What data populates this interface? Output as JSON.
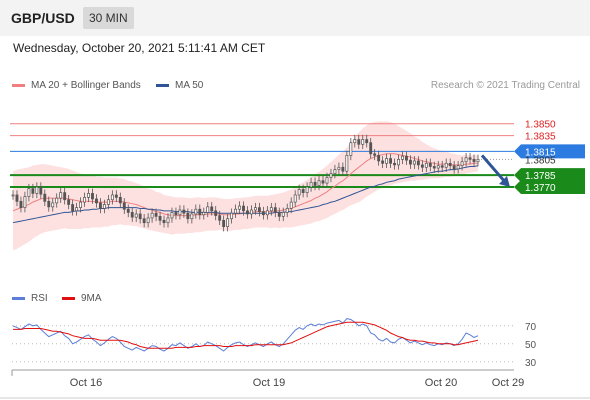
{
  "header": {
    "pair": "GBP/USD",
    "timeframe": "30 MIN",
    "datetime": "Wednesday, October 20, 2021 5:11:41 AM CET"
  },
  "legend": {
    "main": [
      {
        "label": "MA 20 + Bollinger Bands",
        "color": "#f08080"
      },
      {
        "label": "MA 50",
        "color": "#2f5597"
      }
    ],
    "rsi": [
      {
        "label": "RSI",
        "color": "#5b7fd6"
      },
      {
        "label": "9MA",
        "color": "#e01010"
      }
    ]
  },
  "credit": "Research © 2021 Trading Central",
  "colors": {
    "resistance": "#f08080",
    "current": "#2b7be0",
    "support": "#1a8a1a",
    "candle_up": "#444444",
    "candle_down": "#888888",
    "band_fill": "#fde0e0",
    "arrow": "#2f5597"
  },
  "chart_data": [
    {
      "type": "candlestick",
      "x_labels": [
        "Oct 16",
        "Oct 19",
        "Oct 20",
        "Oct 29"
      ],
      "ylim": [
        1.364,
        1.3885
      ],
      "levels": [
        {
          "value": 1.385,
          "label": "1.3850",
          "kind": "resistance"
        },
        {
          "value": 1.3835,
          "label": "1.3835",
          "kind": "resistance"
        },
        {
          "value": 1.3815,
          "label": "1.3815",
          "kind": "current"
        },
        {
          "value": 1.3805,
          "label": "1.3805",
          "kind": "price"
        },
        {
          "value": 1.3785,
          "label": "1.3785",
          "kind": "support"
        },
        {
          "value": 1.377,
          "label": "1.3770",
          "kind": "support"
        }
      ],
      "candles_close": [
        1.376,
        1.3752,
        1.3744,
        1.3758,
        1.3768,
        1.3762,
        1.377,
        1.3761,
        1.3752,
        1.3745,
        1.375,
        1.3756,
        1.3763,
        1.3754,
        1.3748,
        1.374,
        1.3744,
        1.3751,
        1.3757,
        1.3762,
        1.3755,
        1.375,
        1.3743,
        1.3748,
        1.3754,
        1.376,
        1.3757,
        1.375,
        1.3742,
        1.3738,
        1.3732,
        1.3736,
        1.373,
        1.3725,
        1.3731,
        1.3737,
        1.3733,
        1.3728,
        1.3725,
        1.3731,
        1.3738,
        1.3735,
        1.3741,
        1.3737,
        1.373,
        1.3736,
        1.3742,
        1.3735,
        1.3738,
        1.3745,
        1.374,
        1.3734,
        1.3728,
        1.372,
        1.373,
        1.3737,
        1.3742,
        1.3746,
        1.374,
        1.3736,
        1.3741,
        1.3744,
        1.3739,
        1.3735,
        1.374,
        1.3744,
        1.3738,
        1.3733,
        1.3738,
        1.3743,
        1.3751,
        1.376,
        1.3767,
        1.3763,
        1.377,
        1.3776,
        1.3772,
        1.3778,
        1.3775,
        1.3782,
        1.3787,
        1.3792,
        1.3795,
        1.379,
        1.381,
        1.3826,
        1.383,
        1.3824,
        1.383,
        1.3826,
        1.3812,
        1.381,
        1.3803,
        1.38,
        1.3806,
        1.38,
        1.3798,
        1.3805,
        1.3809,
        1.3804,
        1.3799,
        1.3803,
        1.3798,
        1.3795,
        1.38,
        1.3796,
        1.3794,
        1.3797,
        1.3795,
        1.38,
        1.3797,
        1.3793,
        1.3797,
        1.3802,
        1.3807,
        1.3805,
        1.3802,
        1.3805
      ],
      "ma20": [
        1.374,
        1.3742,
        1.3744,
        1.3746,
        1.3748,
        1.3751,
        1.3753,
        1.3755,
        1.3756,
        1.3756,
        1.3756,
        1.3756,
        1.3756,
        1.3756,
        1.3755,
        1.3754,
        1.3753,
        1.3752,
        1.3752,
        1.3752,
        1.3752,
        1.3751,
        1.3751,
        1.3751,
        1.3751,
        1.3752,
        1.3752,
        1.3752,
        1.3751,
        1.375,
        1.3749,
        1.3748,
        1.3746,
        1.3744,
        1.3742,
        1.3741,
        1.3739,
        1.3738,
        1.3736,
        1.3735,
        1.3734,
        1.3734,
        1.3734,
        1.3734,
        1.3734,
        1.3734,
        1.3735,
        1.3735,
        1.3735,
        1.3736,
        1.3736,
        1.3736,
        1.3736,
        1.3735,
        1.3735,
        1.3735,
        1.3736,
        1.3736,
        1.3737,
        1.3737,
        1.3738,
        1.3739,
        1.3739,
        1.3739,
        1.3739,
        1.3739,
        1.374,
        1.374,
        1.3741,
        1.3742,
        1.3743,
        1.3745,
        1.3747,
        1.3749,
        1.3751,
        1.3753,
        1.3756,
        1.3758,
        1.3761,
        1.3764,
        1.3768,
        1.3771,
        1.3775,
        1.3778,
        1.3782,
        1.3787,
        1.3791,
        1.3795,
        1.3799,
        1.3803,
        1.3806,
        1.3808,
        1.381,
        1.3811,
        1.3812,
        1.3812,
        1.3812,
        1.3811,
        1.381,
        1.3809,
        1.3808,
        1.3806,
        1.3805,
        1.3803,
        1.3802,
        1.3801,
        1.38,
        1.3799,
        1.3799,
        1.3799,
        1.3798,
        1.3798,
        1.3798,
        1.3798,
        1.3799,
        1.3799,
        1.38,
        1.38
      ],
      "ma50": [
        1.3725,
        1.3726,
        1.3727,
        1.3728,
        1.3729,
        1.373,
        1.3731,
        1.3732,
        1.3733,
        1.3734,
        1.3735,
        1.3736,
        1.3737,
        1.3738,
        1.3738,
        1.3739,
        1.374,
        1.374,
        1.3741,
        1.3741,
        1.3742,
        1.3742,
        1.3743,
        1.3743,
        1.3744,
        1.3744,
        1.3744,
        1.3744,
        1.3744,
        1.3744,
        1.3744,
        1.3744,
        1.3743,
        1.3743,
        1.3742,
        1.3742,
        1.3741,
        1.3741,
        1.374,
        1.374,
        1.374,
        1.3739,
        1.3739,
        1.3739,
        1.3739,
        1.3738,
        1.3738,
        1.3738,
        1.3738,
        1.3738,
        1.3738,
        1.3738,
        1.3737,
        1.3737,
        1.3737,
        1.3737,
        1.3737,
        1.3737,
        1.3737,
        1.3737,
        1.3737,
        1.3737,
        1.3737,
        1.3737,
        1.3737,
        1.3737,
        1.3738,
        1.3738,
        1.3738,
        1.3739,
        1.3739,
        1.374,
        1.3741,
        1.3742,
        1.3743,
        1.3744,
        1.3745,
        1.3746,
        1.3748,
        1.3749,
        1.3751,
        1.3752,
        1.3754,
        1.3756,
        1.3758,
        1.376,
        1.3762,
        1.3764,
        1.3766,
        1.3768,
        1.377,
        1.3771,
        1.3773,
        1.3774,
        1.3776,
        1.3777,
        1.3778,
        1.378,
        1.3781,
        1.3782,
        1.3783,
        1.3784,
        1.3785,
        1.3786,
        1.3787,
        1.3788,
        1.3789,
        1.379,
        1.379,
        1.3791,
        1.3792,
        1.3792,
        1.3793,
        1.3794,
        1.3795,
        1.3796,
        1.3796,
        1.3797
      ],
      "bb_width": [
        0.005,
        0.005,
        0.0049,
        0.0048,
        0.0047,
        0.0046,
        0.0045,
        0.0044,
        0.0043,
        0.0042,
        0.0041,
        0.004,
        0.0039,
        0.0038,
        0.0038,
        0.0037,
        0.0036,
        0.0035,
        0.0034,
        0.0034,
        0.0033,
        0.0032,
        0.0032,
        0.0031,
        0.0031,
        0.003,
        0.003,
        0.0029,
        0.0029,
        0.0028,
        0.0028,
        0.0027,
        0.0027,
        0.0026,
        0.0026,
        0.0026,
        0.0025,
        0.0025,
        0.0024,
        0.0024,
        0.0024,
        0.0023,
        0.0023,
        0.0023,
        0.0022,
        0.0022,
        0.0022,
        0.0022,
        0.0021,
        0.0021,
        0.0021,
        0.0021,
        0.002,
        0.002,
        0.002,
        0.002,
        0.002,
        0.002,
        0.002,
        0.002,
        0.002,
        0.002,
        0.002,
        0.002,
        0.002,
        0.0021,
        0.0021,
        0.0022,
        0.0022,
        0.0023,
        0.0024,
        0.0025,
        0.0026,
        0.0027,
        0.0028,
        0.0029,
        0.003,
        0.0031,
        0.0032,
        0.0033,
        0.0034,
        0.0035,
        0.0036,
        0.0037,
        0.0038,
        0.004,
        0.0042,
        0.0044,
        0.0045,
        0.0045,
        0.0045,
        0.0044,
        0.0043,
        0.0042,
        0.0041,
        0.004,
        0.0038,
        0.0036,
        0.0034,
        0.0032,
        0.003,
        0.0028,
        0.0026,
        0.0024,
        0.0022,
        0.002,
        0.0019,
        0.0018,
        0.0017,
        0.0016,
        0.0015,
        0.0014,
        0.0013,
        0.0012,
        0.0012,
        0.0011,
        0.0011,
        0.001
      ],
      "forecast_arrow": {
        "from": 1.381,
        "to": 1.377
      }
    },
    {
      "type": "line",
      "name": "RSI",
      "ylim": [
        22,
        82
      ],
      "ticks": [
        30,
        50,
        70
      ],
      "rsi": [
        70,
        68,
        66,
        69,
        72,
        70,
        71,
        66,
        62,
        58,
        60,
        62,
        64,
        59,
        56,
        50,
        52,
        55,
        58,
        60,
        55,
        52,
        48,
        51,
        55,
        58,
        56,
        52,
        47,
        45,
        43,
        46,
        44,
        42,
        45,
        48,
        47,
        44,
        42,
        45,
        49,
        48,
        51,
        48,
        45,
        47,
        50,
        47,
        48,
        52,
        50,
        48,
        45,
        42,
        46,
        49,
        51,
        52,
        49,
        47,
        49,
        51,
        49,
        47,
        50,
        52,
        49,
        47,
        50,
        55,
        60,
        65,
        68,
        66,
        70,
        72,
        70,
        72,
        71,
        73,
        74,
        75,
        76,
        73,
        78,
        77,
        74,
        70,
        72,
        70,
        62,
        60,
        55,
        53,
        56,
        52,
        51,
        55,
        57,
        54,
        51,
        53,
        51,
        49,
        51,
        49,
        48,
        50,
        49,
        51,
        50,
        48,
        50,
        55,
        62,
        60,
        57,
        59
      ],
      "ma9": [
        66,
        66,
        66,
        67,
        67,
        67,
        67,
        67,
        66,
        65,
        64,
        64,
        63,
        62,
        61,
        59,
        58,
        57,
        56,
        56,
        56,
        55,
        54,
        54,
        54,
        54,
        54,
        54,
        53,
        52,
        50,
        49,
        47,
        46,
        45,
        45,
        45,
        45,
        45,
        45,
        45,
        46,
        46,
        46,
        46,
        46,
        47,
        47,
        48,
        48,
        48,
        48,
        48,
        47,
        47,
        47,
        48,
        48,
        48,
        48,
        48,
        49,
        49,
        49,
        49,
        49,
        49,
        49,
        49,
        50,
        51,
        53,
        55,
        57,
        59,
        61,
        63,
        65,
        67,
        69,
        70,
        71,
        72,
        73,
        74,
        74,
        74,
        74,
        74,
        73,
        72,
        71,
        69,
        67,
        65,
        62,
        60,
        58,
        57,
        55,
        54,
        54,
        53,
        53,
        52,
        51,
        51,
        50,
        50,
        50,
        50,
        49,
        49,
        50,
        51,
        52,
        53,
        54
      ]
    }
  ]
}
